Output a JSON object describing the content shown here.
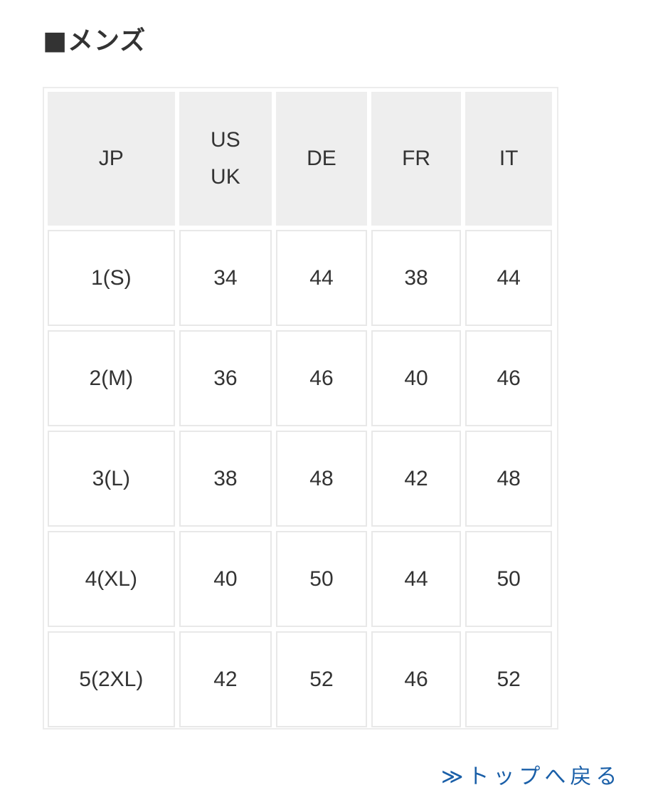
{
  "section_title": "■メンズ",
  "size_table": {
    "headers": [
      "JP",
      "US\nUK",
      "DE",
      "FR",
      "IT"
    ],
    "header_lines": [
      [
        "JP"
      ],
      [
        "US",
        "UK"
      ],
      [
        "DE"
      ],
      [
        "FR"
      ],
      [
        "IT"
      ]
    ],
    "rows": [
      [
        "1(S)",
        "34",
        "44",
        "38",
        "44"
      ],
      [
        "2(M)",
        "36",
        "46",
        "40",
        "46"
      ],
      [
        "3(L)",
        "38",
        "48",
        "42",
        "48"
      ],
      [
        "4(XL)",
        "40",
        "50",
        "44",
        "50"
      ],
      [
        "5(2XL)",
        "42",
        "52",
        "46",
        "52"
      ]
    ]
  },
  "back_to_top_link": "≫トップへ戻る",
  "colors": {
    "header_bg": "#eeeeee",
    "border": "#e8e8e8",
    "link": "#1a5fa8",
    "text": "#333333"
  }
}
